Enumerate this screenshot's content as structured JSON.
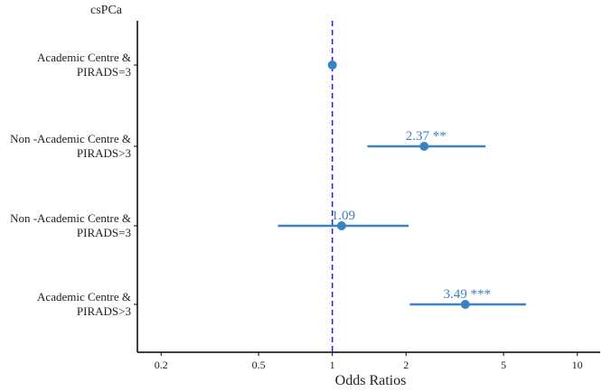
{
  "chart_data": {
    "type": "forest",
    "title": "csPCa",
    "xlabel": "Odds Ratios",
    "x_scale": "log",
    "xlim": [
      0.16,
      12.4
    ],
    "x_ticks": [
      0.2,
      0.5,
      1,
      2,
      5,
      10
    ],
    "x_tick_labels": [
      "0.2",
      "0.5",
      "1",
      "2",
      "5",
      "10"
    ],
    "reference_line": 1,
    "grid": false,
    "rows": [
      {
        "label": [
          "Academic Centre &",
          "PIRADS=3"
        ],
        "estimate": 1,
        "ci": null,
        "annotation": ""
      },
      {
        "label": [
          "Non -Academic Centre &",
          "PIRADS>3"
        ],
        "estimate": 2.37,
        "ci": [
          1.39,
          4.22
        ],
        "annotation": "2.37 **"
      },
      {
        "label": [
          "Non -Academic Centre &",
          "PIRADS=3"
        ],
        "estimate": 1.09,
        "ci": [
          0.6,
          2.05
        ],
        "annotation": "1.09"
      },
      {
        "label": [
          "Academic Centre &",
          "PIRADS>3"
        ],
        "estimate": 3.49,
        "ci": [
          2.07,
          6.17
        ],
        "annotation": "3.49 ***"
      }
    ],
    "colors": {
      "point": "#3a82c4",
      "reference": "#1a1aff",
      "axis": "#000000"
    }
  }
}
